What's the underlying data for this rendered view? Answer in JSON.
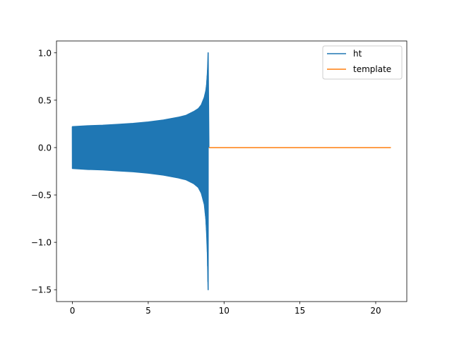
{
  "chart_data": {
    "type": "line",
    "title": "",
    "xlabel": "",
    "ylabel": "",
    "xlim": [
      -1.05,
      22.05
    ],
    "ylim": [
      -1.625,
      1.125
    ],
    "grid": false,
    "legend_position": "upper right",
    "x_ticks": [
      {
        "value": 0,
        "label": "0"
      },
      {
        "value": 5,
        "label": "5"
      },
      {
        "value": 10,
        "label": "10"
      },
      {
        "value": 15,
        "label": "15"
      },
      {
        "value": 20,
        "label": "20"
      }
    ],
    "y_ticks": [
      {
        "value": 1.0,
        "label": "1.0"
      },
      {
        "value": 0.5,
        "label": "0.5"
      },
      {
        "value": 0.0,
        "label": "0.0"
      },
      {
        "value": -0.5,
        "label": "−0.5"
      },
      {
        "value": -1.0,
        "label": "−1.0"
      },
      {
        "value": -1.5,
        "label": "−1.5"
      }
    ],
    "series": [
      {
        "name": "ht",
        "color": "#1f77b4",
        "style": "dense oscillation (chirp), values shown as upper/lower envelope",
        "x": [
          0,
          1,
          2,
          3,
          4,
          5,
          6,
          7,
          7.5,
          8,
          8.3,
          8.5,
          8.7,
          8.8,
          8.85,
          8.9,
          8.92,
          8.95,
          9.0
        ],
        "upper": [
          0.22,
          0.23,
          0.235,
          0.245,
          0.255,
          0.27,
          0.29,
          0.32,
          0.34,
          0.38,
          0.41,
          0.45,
          0.53,
          0.6,
          0.66,
          0.78,
          0.85,
          1.0,
          0.0
        ],
        "lower": [
          -0.22,
          -0.23,
          -0.235,
          -0.245,
          -0.255,
          -0.27,
          -0.29,
          -0.32,
          -0.34,
          -0.38,
          -0.42,
          -0.48,
          -0.6,
          -0.75,
          -0.9,
          -1.1,
          -1.25,
          -1.5,
          0.0
        ]
      },
      {
        "name": "template",
        "color": "#ff7f0e",
        "x": [
          9.0,
          21.0
        ],
        "y": [
          0.0,
          0.0
        ]
      }
    ]
  }
}
